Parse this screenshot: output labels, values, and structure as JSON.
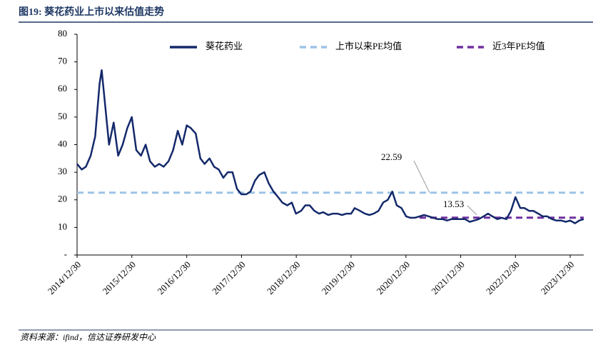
{
  "chart_data": {
    "type": "line",
    "title": "图19: 葵花药业上市以来估值走势",
    "source": "资料来源：ifind，信达证券研发中心",
    "x": [
      "2014/12/30",
      "2015/01/30",
      "2015/02/27",
      "2015/03/31",
      "2015/04/30",
      "2015/05/29",
      "2015/06/12",
      "2015/07/31",
      "2015/08/31",
      "2015/09/30",
      "2015/10/30",
      "2015/11/30",
      "2015/12/30",
      "2016/01/29",
      "2016/02/29",
      "2016/03/31",
      "2016/04/29",
      "2016/05/31",
      "2016/06/30",
      "2016/07/29",
      "2016/08/31",
      "2016/09/30",
      "2016/10/31",
      "2016/11/30",
      "2016/12/30",
      "2017/01/26",
      "2017/02/28",
      "2017/03/31",
      "2017/04/28",
      "2017/05/31",
      "2017/06/30",
      "2017/07/31",
      "2017/08/31",
      "2017/09/29",
      "2017/10/31",
      "2017/11/30",
      "2017/12/29",
      "2018/01/31",
      "2018/02/28",
      "2018/03/30",
      "2018/04/27",
      "2018/05/31",
      "2018/06/29",
      "2018/07/31",
      "2018/08/31",
      "2018/09/28",
      "2018/10/31",
      "2018/11/30",
      "2018/12/28",
      "2019/01/31",
      "2019/02/28",
      "2019/03/29",
      "2019/04/30",
      "2019/05/31",
      "2019/06/28",
      "2019/07/31",
      "2019/08/30",
      "2019/09/30",
      "2019/10/31",
      "2019/11/29",
      "2019/12/31",
      "2020/01/23",
      "2020/02/28",
      "2020/03/31",
      "2020/04/30",
      "2020/05/29",
      "2020/06/30",
      "2020/07/31",
      "2020/08/31",
      "2020/09/30",
      "2020/10/30",
      "2020/11/30",
      "2020/12/31",
      "2021/01/29",
      "2021/02/26",
      "2021/03/31",
      "2021/04/30",
      "2021/05/31",
      "2021/06/30",
      "2021/07/30",
      "2021/08/31",
      "2021/09/30",
      "2021/10/29",
      "2021/11/30",
      "2021/12/31",
      "2022/01/28",
      "2022/02/28",
      "2022/03/31",
      "2022/04/29",
      "2022/05/31",
      "2022/06/30",
      "2022/07/29",
      "2022/08/31",
      "2022/09/30",
      "2022/10/31",
      "2022/11/30",
      "2022/12/30",
      "2023/01/31",
      "2023/02/28",
      "2023/03/31",
      "2023/04/28",
      "2023/05/31",
      "2023/06/30",
      "2023/07/31",
      "2023/08/31",
      "2023/09/28",
      "2023/10/31",
      "2023/11/30",
      "2023/12/29",
      "2024/01/31",
      "2024/02/29",
      "2024/03/29"
    ],
    "series": [
      {
        "name": "葵花药业",
        "color": "#14296b",
        "values": [
          33,
          31,
          32,
          36,
          43,
          62,
          67,
          40,
          48,
          36,
          40,
          46,
          50,
          38,
          36,
          40,
          34,
          32,
          33,
          32,
          34,
          38,
          45,
          40,
          47,
          46,
          44,
          35,
          33,
          35,
          32,
          31,
          28,
          30,
          30,
          24,
          22,
          22,
          23,
          27,
          29,
          30,
          26,
          23,
          21,
          19,
          18,
          19,
          15,
          16,
          18,
          18,
          16,
          15,
          15.5,
          14.5,
          15,
          15,
          14.5,
          15,
          15,
          17,
          16,
          15,
          14.5,
          15,
          16,
          19,
          20,
          23,
          18,
          17,
          14,
          13.5,
          13.5,
          14,
          14.5,
          14,
          13.5,
          13,
          13,
          12.5,
          13,
          13,
          13,
          13,
          12,
          12.5,
          13,
          14,
          15,
          14,
          13,
          13.5,
          13,
          16,
          21,
          17,
          17,
          16,
          16,
          15,
          14,
          14,
          13,
          12.5,
          12.5,
          12,
          12.5,
          11.5,
          12.5,
          13
        ]
      }
    ],
    "reference_lines": [
      {
        "name": "上市以来PE均值",
        "value": 22.59,
        "color": "#9dc3e6",
        "start": "2014/12/30"
      },
      {
        "name": "近3年PE均值",
        "value": 13.53,
        "color": "#7030a0",
        "start": "2021/03/31"
      }
    ],
    "xlim": [
      "2014/12/30",
      "2024/03/29"
    ],
    "xticks": [
      "2014/12/30",
      "2015/12/30",
      "2016/12/30",
      "2017/12/30",
      "2018/12/30",
      "2019/12/30",
      "2020/12/30",
      "2021/12/30",
      "2022/12/30",
      "2023/12/30"
    ],
    "ylim": [
      0,
      80
    ],
    "yticks": [
      {
        "value": 0,
        "label": "-"
      },
      10,
      20,
      30,
      40,
      50,
      60,
      70,
      80
    ],
    "grid": false
  }
}
